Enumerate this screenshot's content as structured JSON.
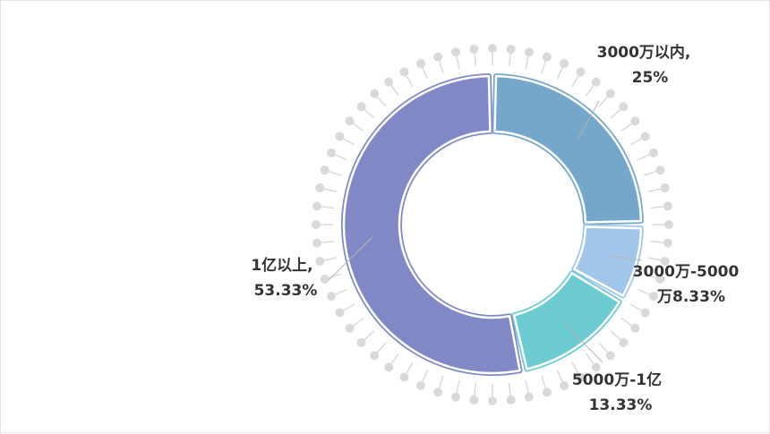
{
  "chart_data": {
    "type": "pie",
    "variant": "donut",
    "title": "",
    "slices": [
      {
        "name": "3000万以内",
        "value": 25,
        "label_line1": "3000万以内,",
        "label_line2": "25%",
        "color": "#74a7ca"
      },
      {
        "name": "3000万-5000万",
        "value": 8.33,
        "label_line1": "3000万-5000",
        "label_line2": "万8.33%",
        "color": "#a2c6ea"
      },
      {
        "name": "5000万-1亿",
        "value": 13.33,
        "label_line1": "5000万-1亿",
        "label_line2": "13.33%",
        "color": "#6ccbd1"
      },
      {
        "name": "1亿以上",
        "value": 53.33,
        "label_line1": "1亿以上,",
        "label_line2": "53.33%",
        "color": "#8089c6"
      }
    ],
    "legend": "none",
    "decoration": "pin ring of grey dots around donut"
  }
}
